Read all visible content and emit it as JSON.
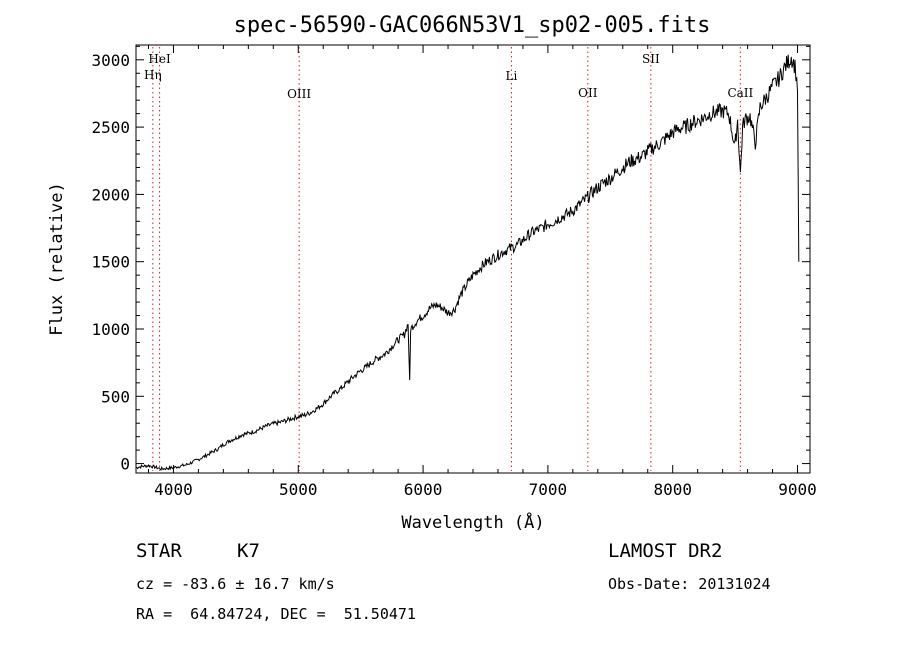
{
  "chart_data": {
    "type": "line",
    "title": "spec-56590-GAC066N53V1_sp02-005.fits",
    "xlabel": "Wavelength (Å)",
    "ylabel": "Flux (relative)",
    "xlim": [
      3700,
      9100
    ],
    "ylim": [
      -70,
      3110
    ],
    "x_ticks": [
      4000,
      5000,
      6000,
      7000,
      8000,
      9000
    ],
    "y_ticks": [
      0,
      500,
      1000,
      1500,
      2000,
      2500,
      3000
    ],
    "x_tick_labels": [
      "4000",
      "5000",
      "6000",
      "7000",
      "8000",
      "9000"
    ],
    "y_tick_labels": [
      "0",
      "500",
      "1000",
      "1500",
      "2000",
      "2500",
      "3000"
    ],
    "grid": false,
    "lines": [
      {
        "label": "HeI",
        "wavelength": 3889
      },
      {
        "label": "Hη",
        "wavelength": 3835
      },
      {
        "label": "OIII",
        "wavelength": 5007
      },
      {
        "label": "Li",
        "wavelength": 6708
      },
      {
        "label": "OII",
        "wavelength": 7320
      },
      {
        "label": "SII",
        "wavelength": 7825
      },
      {
        "label": "CaII",
        "wavelength": 8542
      }
    ],
    "series": [
      {
        "x": [
          3700,
          3750,
          3800,
          3850,
          3900,
          3950,
          4000,
          4050,
          4100,
          4150,
          4200,
          4250,
          4300,
          4350,
          4400,
          4450,
          4500,
          4550,
          4600,
          4650,
          4700,
          4750,
          4800,
          4850,
          4900,
          4950,
          5000,
          5050,
          5100,
          5150,
          5200,
          5250,
          5300,
          5350,
          5400,
          5450,
          5500,
          5550,
          5600,
          5650,
          5700,
          5750,
          5800,
          5850,
          5880,
          5893,
          5900,
          5950,
          6000,
          6050,
          6100,
          6150,
          6200,
          6250,
          6300,
          6350,
          6400,
          6450,
          6500,
          6550,
          6600,
          6650,
          6700,
          6750,
          6800,
          6850,
          6900,
          6950,
          7000,
          7050,
          7100,
          7150,
          7200,
          7250,
          7300,
          7350,
          7400,
          7450,
          7500,
          7550,
          7600,
          7650,
          7700,
          7750,
          7800,
          7850,
          7900,
          7950,
          8000,
          8050,
          8100,
          8150,
          8200,
          8250,
          8300,
          8350,
          8400,
          8450,
          8498,
          8520,
          8542,
          8560,
          8580,
          8620,
          8662,
          8700,
          8750,
          8800,
          8850,
          8900,
          8950,
          8980,
          9000,
          9010
        ],
        "y": [
          -30,
          -20,
          -15,
          -25,
          -40,
          -35,
          -30,
          -20,
          -10,
          10,
          30,
          55,
          80,
          105,
          140,
          170,
          190,
          215,
          225,
          240,
          260,
          280,
          295,
          305,
          320,
          335,
          350,
          360,
          380,
          410,
          445,
          490,
          530,
          565,
          610,
          650,
          690,
          720,
          760,
          790,
          820,
          870,
          920,
          960,
          1040,
          600,
          1000,
          1060,
          1100,
          1150,
          1180,
          1160,
          1120,
          1140,
          1250,
          1330,
          1400,
          1450,
          1490,
          1520,
          1550,
          1580,
          1600,
          1620,
          1660,
          1700,
          1730,
          1750,
          1780,
          1800,
          1830,
          1850,
          1880,
          1920,
          1960,
          2010,
          2050,
          2090,
          2120,
          2160,
          2200,
          2240,
          2260,
          2280,
          2320,
          2350,
          2380,
          2420,
          2460,
          2490,
          2500,
          2530,
          2550,
          2570,
          2600,
          2610,
          2620,
          2600,
          2350,
          2550,
          2150,
          2500,
          2560,
          2580,
          2380,
          2650,
          2720,
          2800,
          2860,
          2950,
          3020,
          2950,
          2800,
          1500
        ]
      }
    ]
  },
  "info": {
    "object_type": "STAR",
    "subclass": "K7",
    "survey": "LAMOST DR2",
    "cz": "cz = -83.6 ± 16.7 km/s",
    "obs_date": "Obs-Date: 20131024",
    "coords": "RA =  64.84724, DEC =  51.50471"
  },
  "colors": {
    "spectrum": "#000000",
    "line_markers": "#d62020"
  }
}
